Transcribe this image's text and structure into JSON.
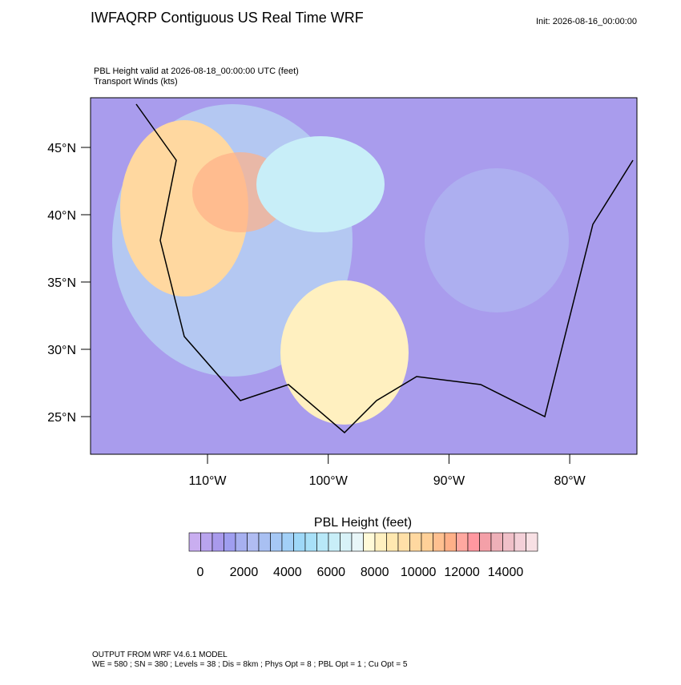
{
  "header": {
    "title": "IWFAQRP Contiguous US Real Time WRF",
    "init": "Init: 2026-08-16_00:00:00"
  },
  "subtitle": [
    "PBL Height valid at 2026-08-18_00:00:00 UTC   (feet)",
    "Transport Winds   (kts)"
  ],
  "map": {
    "lat_labels": [
      "45°N",
      "40°N",
      "35°N",
      "30°N",
      "25°N"
    ],
    "lon_labels": [
      "110°W",
      "100°W",
      "90°W",
      "80°W"
    ]
  },
  "colorbar": {
    "title": "PBL Height  (feet)",
    "colors": [
      "#c9aef0",
      "#b9a4ee",
      "#a99aec",
      "#9f9ef0",
      "#a7b0f0",
      "#b0bcf2",
      "#a9c0f2",
      "#a6c8f5",
      "#a2d0f7",
      "#9ed8f8",
      "#a8e0f8",
      "#b8e8f8",
      "#c8eef8",
      "#d8f2f8",
      "#e8f6f8",
      "#fffad8",
      "#fff0c0",
      "#ffe8b0",
      "#ffe0a8",
      "#ffd8a0",
      "#ffd098",
      "#ffc090",
      "#ffb088",
      "#ffa8a0",
      "#ff98a0",
      "#f4a0a8",
      "#eeb0b8",
      "#f0c0c8",
      "#f4d0d8",
      "#f8e0e4"
    ],
    "ticks": [
      0,
      2000,
      4000,
      6000,
      8000,
      10000,
      12000,
      14000
    ]
  },
  "footer": [
    "OUTPUT FROM WRF V4.6.1 MODEL",
    "WE = 580 ; SN = 380 ; Levels = 38 ; Dis = 8km ; Phys Opt = 8 ; PBL Opt = 1 ; Cu Opt = 5"
  ]
}
